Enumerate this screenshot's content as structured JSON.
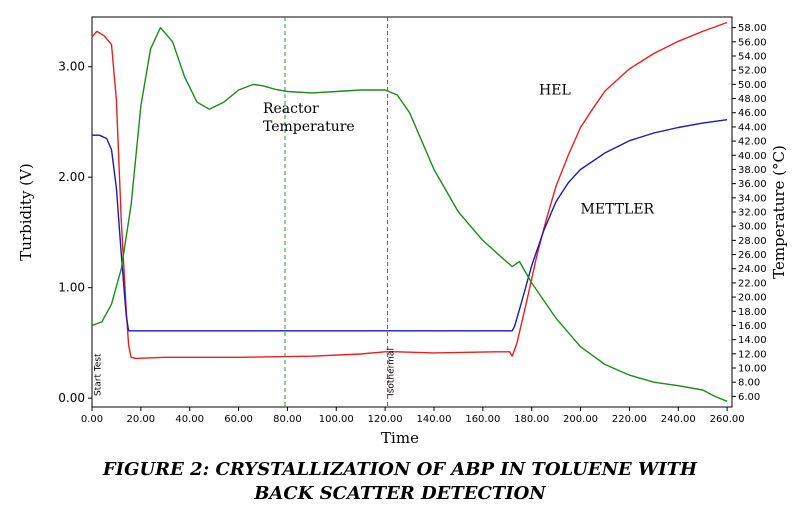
{
  "caption": {
    "line1": "FIGURE 2: CRYSTALLIZATION OF ABP IN TOLUENE WITH",
    "line2": "BACK SCATTER DETECTION"
  },
  "chart_data": {
    "type": "line",
    "title": "",
    "xlabel": "Time",
    "ylabel": "Turbidity (V)",
    "ylabel_right": "Temperature (°C)",
    "xlim": [
      0,
      262
    ],
    "ylim": [
      -0.08,
      3.45
    ],
    "ylim_right": [
      4.5,
      59.5
    ],
    "x_ticks": [
      0,
      20,
      40,
      60,
      80,
      100,
      120,
      140,
      160,
      180,
      200,
      220,
      240,
      260
    ],
    "x_tick_labels": [
      "0.00",
      "20.00",
      "40.00",
      "60.00",
      "80.00",
      "100.00",
      "120.00",
      "140.00",
      "160.00",
      "180.00",
      "200.00",
      "220.00",
      "240.00",
      "260.00"
    ],
    "y_ticks": [
      0,
      1,
      2,
      3
    ],
    "y_tick_labels": [
      "0.00",
      "1.00",
      "2.00",
      "3.00"
    ],
    "y_right_ticks": [
      6,
      8,
      10,
      12,
      14,
      16,
      18,
      20,
      22,
      24,
      26,
      28,
      30,
      32,
      34,
      36,
      38,
      40,
      42,
      44,
      46,
      48,
      50,
      52,
      54,
      56,
      58
    ],
    "y_right_tick_labels": [
      "6.00",
      "8.00",
      "10.00",
      "12.00",
      "14.00",
      "16.00",
      "18.00",
      "20.00",
      "22.00",
      "24.00",
      "26.00",
      "28.00",
      "30.00",
      "32.00",
      "34.00",
      "36.00",
      "38.00",
      "40.00",
      "42.00",
      "44.00",
      "46.00",
      "48.00",
      "50.00",
      "52.00",
      "54.00",
      "56.00",
      "58.00"
    ],
    "grid": false,
    "series": [
      {
        "name": "HEL",
        "axis": "left",
        "color": "#e8201c",
        "x": [
          0,
          2,
          5,
          8,
          10,
          12,
          14,
          15,
          16,
          18,
          30,
          60,
          90,
          110,
          120,
          125,
          140,
          165,
          171,
          172,
          174,
          178,
          182,
          186,
          190,
          195,
          200,
          205,
          210,
          220,
          230,
          240,
          250,
          260
        ],
        "y": [
          3.27,
          3.32,
          3.28,
          3.2,
          2.7,
          1.6,
          0.8,
          0.48,
          0.37,
          0.36,
          0.37,
          0.37,
          0.38,
          0.4,
          0.42,
          0.42,
          0.41,
          0.42,
          0.42,
          0.38,
          0.5,
          0.88,
          1.28,
          1.62,
          1.92,
          2.2,
          2.45,
          2.62,
          2.78,
          2.98,
          3.12,
          3.23,
          3.32,
          3.4
        ]
      },
      {
        "name": "METTLER",
        "axis": "left",
        "color": "#1a1ab4",
        "x": [
          0,
          3,
          6,
          8,
          10,
          12,
          14,
          15,
          16,
          100,
          172,
          173,
          176,
          180,
          185,
          190,
          195,
          200,
          210,
          220,
          230,
          240,
          250,
          260
        ],
        "y": [
          2.38,
          2.38,
          2.35,
          2.25,
          1.9,
          1.3,
          0.75,
          0.61,
          0.61,
          0.61,
          0.61,
          0.65,
          0.88,
          1.2,
          1.52,
          1.78,
          1.95,
          2.07,
          2.22,
          2.33,
          2.4,
          2.45,
          2.49,
          2.52
        ]
      },
      {
        "name": "Reactor Temperature",
        "axis": "right",
        "color": "#1c8a1c",
        "x": [
          0,
          4,
          8,
          12,
          16,
          20,
          24,
          28,
          33,
          38,
          43,
          48,
          54,
          60,
          66,
          70,
          75,
          80,
          90,
          100,
          110,
          120,
          125,
          130,
          140,
          150,
          160,
          168,
          172,
          175,
          180,
          190,
          200,
          210,
          220,
          230,
          240,
          250,
          255,
          260
        ],
        "y": [
          16,
          16.5,
          19,
          24,
          33,
          47,
          55,
          58,
          56,
          51,
          47.5,
          46.5,
          47.5,
          49.2,
          50,
          49.8,
          49.3,
          49,
          48.8,
          49,
          49.2,
          49.2,
          48.5,
          46,
          38,
          32,
          28,
          25.5,
          24.3,
          25,
          22,
          17,
          13,
          10.5,
          9,
          8,
          7.5,
          6.9,
          6,
          5.3
        ]
      }
    ],
    "vlines": [
      {
        "x": 79,
        "color": "#2a9a2a"
      },
      {
        "x": 121,
        "color": "#e8201c"
      }
    ],
    "annotations": [
      {
        "text_lines": [
          "Reactor",
          "Temperature"
        ],
        "x": 70,
        "y": 2.58
      },
      {
        "text_lines": [
          "HEL"
        ],
        "x": 183,
        "y": 2.75
      },
      {
        "text_lines": [
          "METTLER"
        ],
        "x": 200,
        "y": 1.67
      }
    ],
    "vertical_labels": [
      {
        "text": "Start Test",
        "x": 3.5,
        "y": 0.02
      },
      {
        "text": "Isothermal",
        "x": 123.5,
        "y": 0.02
      }
    ]
  }
}
